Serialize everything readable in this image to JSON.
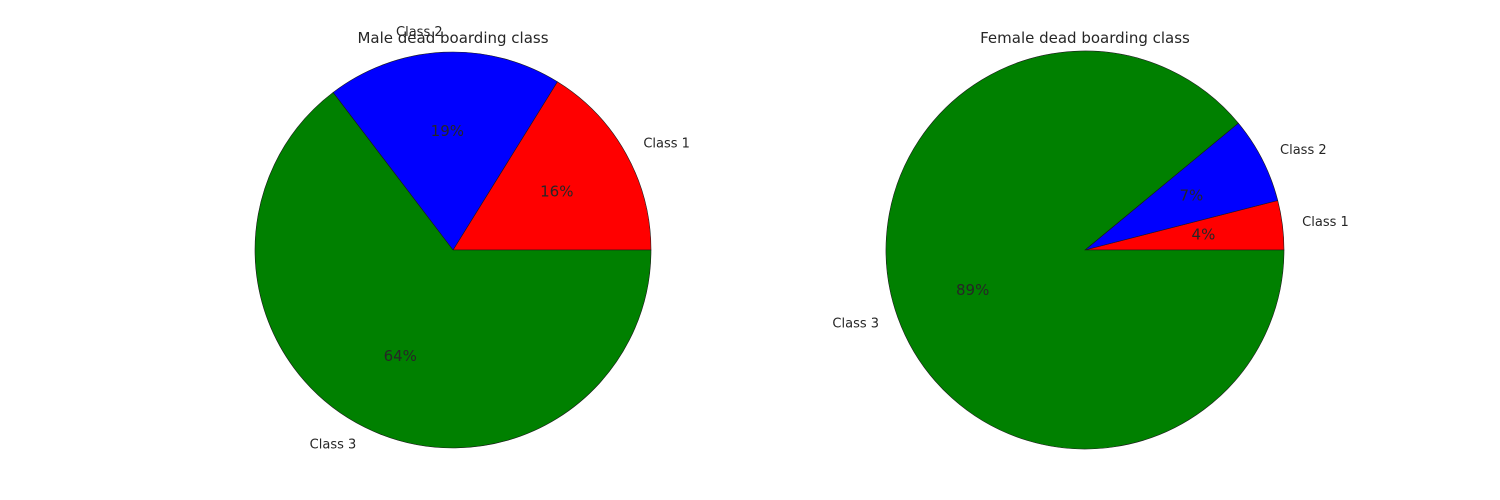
{
  "chart_data": [
    {
      "type": "pie",
      "title": "Male dead boarding class",
      "categories": [
        "Class 1",
        "Class 2",
        "Class 3"
      ],
      "values": [
        16,
        19,
        64
      ],
      "value_labels": [
        "16%",
        "19%",
        "64%"
      ],
      "colors": [
        "#ff0000",
        "#0000ff",
        "#008000"
      ]
    },
    {
      "type": "pie",
      "title": "Female dead boarding class",
      "categories": [
        "Class 1",
        "Class 2",
        "Class 3"
      ],
      "values": [
        4,
        7,
        89
      ],
      "value_labels": [
        "4%",
        "7%",
        "89%"
      ],
      "colors": [
        "#ff0000",
        "#0000ff",
        "#008000"
      ]
    }
  ]
}
